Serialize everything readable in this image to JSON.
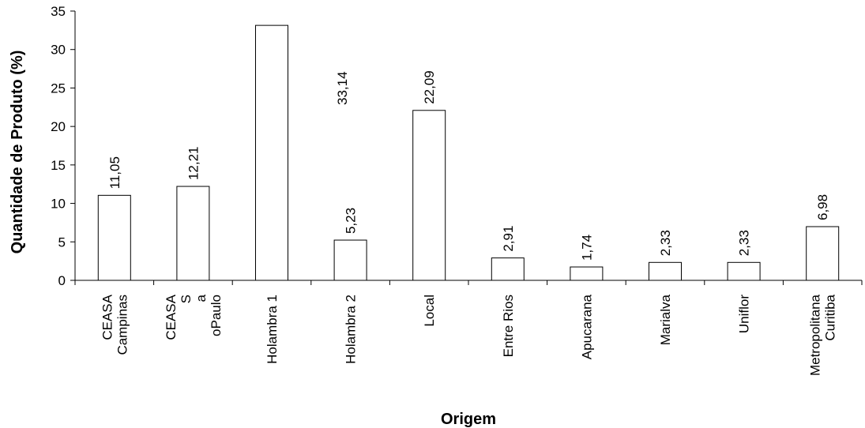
{
  "chart_data": {
    "type": "bar",
    "title": "",
    "xlabel": "Origem",
    "ylabel": "Quantidade de Produto (%)",
    "ylim": [
      0,
      35
    ],
    "yticks": [
      "0",
      "5",
      "10",
      "15",
      "20",
      "25",
      "30",
      "35"
    ],
    "categories": [
      [
        "CEASA",
        "Campinas"
      ],
      [
        "CEASA",
        "S",
        "a",
        "oPaulo"
      ],
      [
        "Holambra 1"
      ],
      [
        "Holambra 2"
      ],
      [
        "Local"
      ],
      [
        "Entre Rios"
      ],
      [
        "Apucarana"
      ],
      [
        "Marialva"
      ],
      [
        "Uniflor"
      ],
      [
        "Metropolitana",
        "Curitiba"
      ]
    ],
    "values": [
      11.05,
      12.21,
      33.14,
      5.23,
      22.09,
      2.91,
      1.74,
      2.33,
      2.33,
      6.98
    ],
    "data_labels": [
      "11,05",
      "12,21",
      "33,14",
      "5,23",
      "22,09",
      "2,91",
      "1,74",
      "2,33",
      "2,33",
      "6,98"
    ],
    "colors": {
      "bar_fill": "#ffffff",
      "bar_stroke": "#000000",
      "axis": "#000000"
    },
    "grid": false,
    "legend": "none"
  }
}
